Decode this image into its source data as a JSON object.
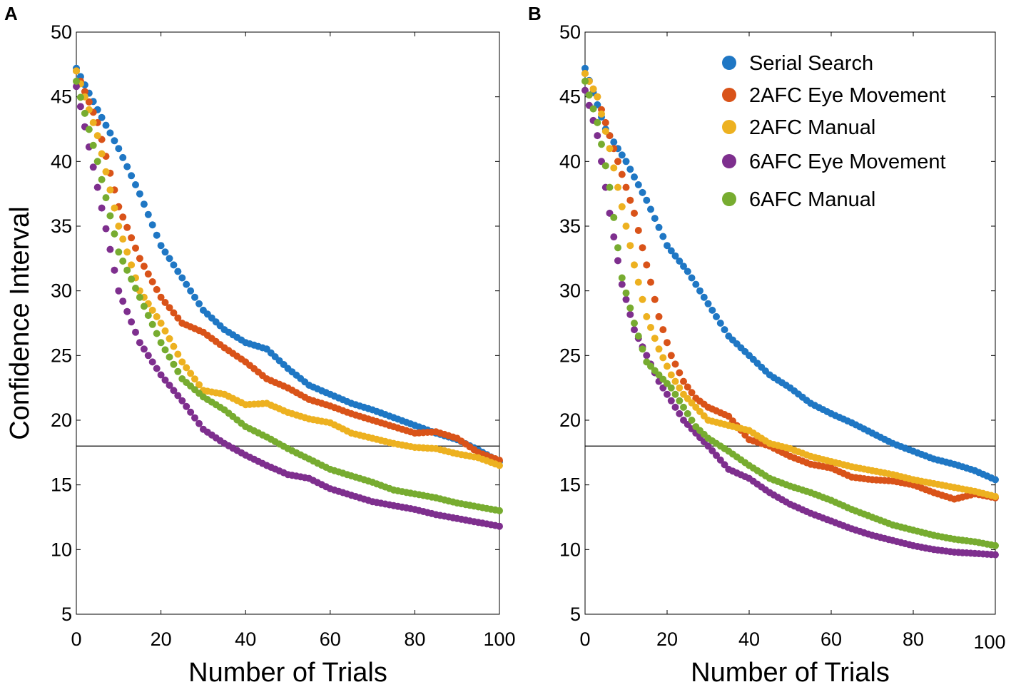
{
  "chart_data": [
    {
      "type": "scatter",
      "panel": "A",
      "xlabel": "Number of Trials",
      "ylabel": "Confidence Interval",
      "xlim": [
        0,
        100
      ],
      "ylim": [
        5,
        50
      ],
      "xticks": [
        0,
        20,
        40,
        60,
        80,
        100
      ],
      "yticks": [
        5,
        10,
        15,
        20,
        25,
        30,
        35,
        40,
        45,
        50
      ],
      "reference_line": {
        "y": 18
      },
      "legend": false,
      "series": [
        {
          "name": "Serial Search",
          "color": "#1f77c4",
          "x": [
            0,
            5,
            10,
            15,
            20,
            25,
            30,
            35,
            40,
            45,
            50,
            55,
            60,
            65,
            70,
            75,
            80,
            85,
            90,
            95,
            100
          ],
          "y": [
            47.2,
            44,
            41,
            37.5,
            33.5,
            31,
            28.5,
            27,
            26,
            25.5,
            24,
            22.7,
            22,
            21.3,
            20.8,
            20.2,
            19.6,
            19,
            18.5,
            17.7,
            16.8
          ]
        },
        {
          "name": "2AFC Eye Movement",
          "color": "#d95319",
          "x": [
            0,
            5,
            10,
            15,
            20,
            25,
            30,
            35,
            40,
            45,
            50,
            55,
            60,
            65,
            70,
            75,
            80,
            85,
            90,
            95,
            100
          ],
          "y": [
            47,
            43,
            36.5,
            32.5,
            29.5,
            27.5,
            26.8,
            25.6,
            24.5,
            23.2,
            22.5,
            21.6,
            21.1,
            20.5,
            20,
            19.5,
            19,
            19.1,
            18.6,
            17.5,
            16.9
          ]
        },
        {
          "name": "2AFC Manual",
          "color": "#edb120",
          "x": [
            0,
            5,
            10,
            15,
            20,
            25,
            30,
            35,
            40,
            45,
            50,
            55,
            60,
            65,
            70,
            75,
            80,
            85,
            90,
            95,
            100
          ],
          "y": [
            47,
            42,
            35,
            30,
            27.5,
            24.5,
            22.3,
            22,
            21.2,
            21.3,
            20.6,
            20.1,
            19.8,
            19,
            18.6,
            18.2,
            17.9,
            17.8,
            17.4,
            17.1,
            16.5
          ]
        },
        {
          "name": "6AFC Eye Movement",
          "color": "#7e2f8e",
          "x": [
            0,
            5,
            10,
            15,
            20,
            25,
            30,
            35,
            40,
            45,
            50,
            55,
            60,
            65,
            70,
            75,
            80,
            85,
            90,
            95,
            100
          ],
          "y": [
            45.8,
            38,
            30,
            26,
            23.5,
            21.5,
            19.3,
            18.2,
            17.3,
            16.5,
            15.8,
            15.5,
            14.7,
            14.2,
            13.7,
            13.4,
            13.1,
            12.7,
            12.4,
            12.1,
            11.8
          ]
        },
        {
          "name": "6AFC Manual",
          "color": "#77ac30",
          "x": [
            0,
            5,
            10,
            15,
            20,
            25,
            30,
            35,
            40,
            45,
            50,
            55,
            60,
            65,
            70,
            75,
            80,
            85,
            90,
            95,
            100
          ],
          "y": [
            46.2,
            40,
            33,
            29.5,
            26,
            23.2,
            21.8,
            20.8,
            19.5,
            18.7,
            17.8,
            17,
            16.2,
            15.7,
            15.2,
            14.6,
            14.3,
            14,
            13.6,
            13.3,
            13
          ]
        }
      ]
    },
    {
      "type": "scatter",
      "panel": "B",
      "xlabel": "Number of Trials",
      "ylabel": "",
      "xlim": [
        0,
        100
      ],
      "ylim": [
        5,
        50
      ],
      "xticks": [
        0,
        20,
        40,
        60,
        80,
        100
      ],
      "yticks": [
        5,
        10,
        15,
        20,
        25,
        30,
        35,
        40,
        45,
        50
      ],
      "reference_line": {
        "y": 18
      },
      "legend": true,
      "legend_position": "top-right",
      "series": [
        {
          "name": "Serial Search",
          "color": "#1f77c4",
          "x": [
            0,
            5,
            10,
            15,
            20,
            25,
            30,
            35,
            40,
            45,
            50,
            55,
            60,
            65,
            70,
            75,
            80,
            85,
            90,
            95,
            100
          ],
          "y": [
            47.2,
            42.5,
            40,
            37,
            33.5,
            31.5,
            29,
            26.5,
            25,
            23.5,
            22.5,
            21.3,
            20.5,
            19.8,
            19,
            18.2,
            17.6,
            17,
            16.6,
            16.1,
            15.4
          ]
        },
        {
          "name": "2AFC Eye Movement",
          "color": "#d95319",
          "x": [
            0,
            3,
            6,
            9,
            12,
            15,
            18,
            21,
            24,
            27,
            30,
            35,
            40,
            45,
            50,
            55,
            60,
            65,
            70,
            75,
            80,
            85,
            90,
            95,
            100
          ],
          "y": [
            46.8,
            45,
            42,
            39,
            36,
            32,
            28,
            25,
            23,
            21.7,
            21,
            20.3,
            18.5,
            18,
            17.2,
            16.6,
            16.3,
            15.6,
            15.4,
            15.3,
            15,
            14.4,
            13.9,
            14.3,
            14
          ]
        },
        {
          "name": "2AFC Manual",
          "color": "#edb120",
          "x": [
            0,
            3,
            6,
            9,
            12,
            15,
            18,
            21,
            24,
            27,
            30,
            35,
            40,
            45,
            50,
            55,
            60,
            65,
            70,
            75,
            80,
            85,
            90,
            95,
            100
          ],
          "y": [
            46.8,
            45,
            41,
            36.5,
            32,
            28,
            25.5,
            23.5,
            22,
            21,
            20,
            19.6,
            19.2,
            18.2,
            17.8,
            17.2,
            16.8,
            16.4,
            16.1,
            15.8,
            15.4,
            15.1,
            14.8,
            14.5,
            14.1
          ]
        },
        {
          "name": "6AFC Eye Movement",
          "color": "#7e2f8e",
          "x": [
            0,
            3,
            6,
            9,
            12,
            15,
            18,
            21,
            24,
            27,
            30,
            35,
            40,
            45,
            50,
            55,
            60,
            65,
            70,
            75,
            80,
            85,
            90,
            95,
            100
          ],
          "y": [
            45.5,
            42,
            36,
            30.5,
            27,
            25,
            23,
            21.5,
            20,
            19,
            18,
            16.2,
            15.5,
            14.4,
            13.5,
            12.8,
            12.2,
            11.6,
            11.1,
            10.7,
            10.3,
            10,
            9.8,
            9.7,
            9.6
          ]
        },
        {
          "name": "6AFC Manual",
          "color": "#77ac30",
          "x": [
            0,
            3,
            6,
            9,
            12,
            15,
            18,
            21,
            24,
            27,
            30,
            35,
            40,
            45,
            50,
            55,
            60,
            65,
            70,
            75,
            80,
            85,
            90,
            95,
            100
          ],
          "y": [
            46.2,
            43,
            38,
            31,
            27.5,
            24.5,
            23.5,
            22.5,
            21,
            19.5,
            18.6,
            17.6,
            16.5,
            15.5,
            14.9,
            14.4,
            13.8,
            13.1,
            12.5,
            11.9,
            11.5,
            11.1,
            10.8,
            10.6,
            10.3
          ]
        }
      ]
    }
  ]
}
